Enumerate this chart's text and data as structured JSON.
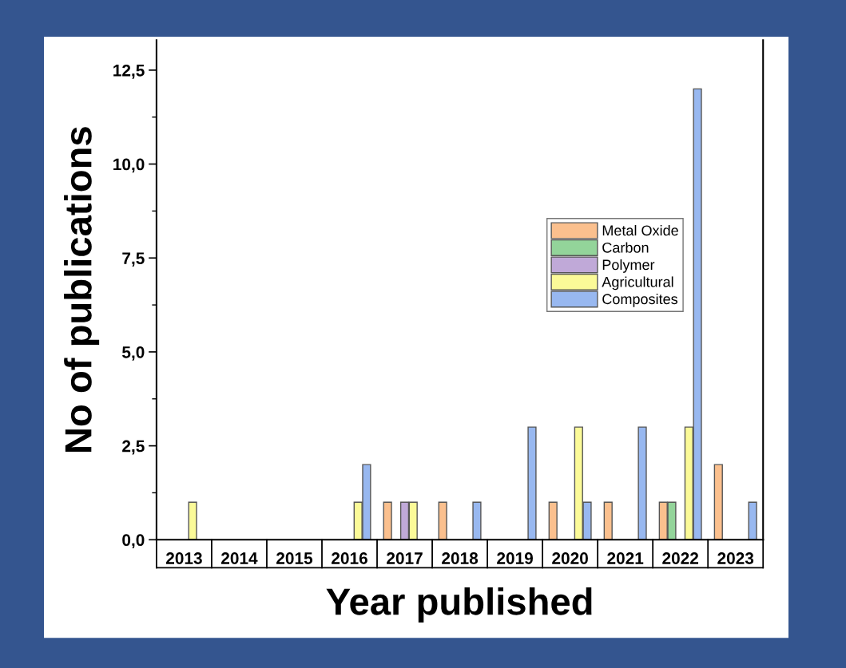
{
  "chart_data": {
    "type": "bar",
    "xlabel": "Year published",
    "ylabel": "No of publications",
    "categories": [
      "2013",
      "2014",
      "2015",
      "2016",
      "2017",
      "2018",
      "2019",
      "2020",
      "2021",
      "2022",
      "2023"
    ],
    "series": [
      {
        "name": "Metal Oxide",
        "color": "#fbc08e",
        "values": [
          0,
          0,
          0,
          0,
          1,
          1,
          0,
          1,
          1,
          1,
          2
        ]
      },
      {
        "name": "Carbon",
        "color": "#93d49a",
        "values": [
          0,
          0,
          0,
          0,
          0,
          0,
          0,
          0,
          0,
          1,
          0
        ]
      },
      {
        "name": "Polymer",
        "color": "#c0a9d8",
        "values": [
          0,
          0,
          0,
          0,
          1,
          0,
          0,
          0,
          0,
          0,
          0
        ]
      },
      {
        "name": "Agricultural",
        "color": "#fbfa98",
        "values": [
          1,
          0,
          0,
          1,
          1,
          0,
          0,
          3,
          0,
          3,
          0
        ]
      },
      {
        "name": "Composites",
        "color": "#98b8f0",
        "values": [
          0,
          0,
          0,
          2,
          0,
          1,
          3,
          1,
          3,
          12,
          1
        ]
      }
    ],
    "ylim": [
      0,
      13.3
    ],
    "yticks": [
      {
        "value": 0,
        "label": "0,0"
      },
      {
        "value": 1.25,
        "label": null
      },
      {
        "value": 2.5,
        "label": "2,5"
      },
      {
        "value": 3.75,
        "label": null
      },
      {
        "value": 5,
        "label": "5,0"
      },
      {
        "value": 6.25,
        "label": null
      },
      {
        "value": 7.5,
        "label": "7,5"
      },
      {
        "value": 8.75,
        "label": null
      },
      {
        "value": 10,
        "label": "10,0"
      },
      {
        "value": 11.25,
        "label": null
      },
      {
        "value": 12.5,
        "label": "12,5"
      }
    ],
    "grid": false,
    "legend": "right"
  }
}
